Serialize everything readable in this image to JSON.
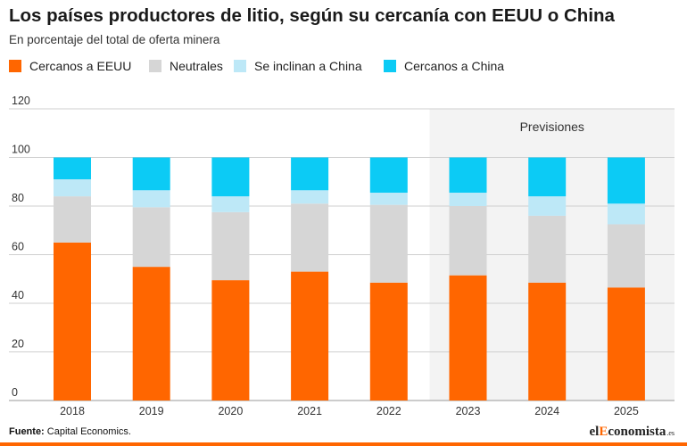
{
  "header": {
    "title": "Los países productores de litio, según su cercanía con EEUU o China",
    "subtitle": "En porcentaje del total de oferta minera"
  },
  "legend": [
    {
      "label": "Cercanos a EEUU",
      "color": "#ff6600"
    },
    {
      "label": "Neutrales",
      "color": "#d6d6d6"
    },
    {
      "label": "Se inclinan a China",
      "color": "#bde8f7"
    },
    {
      "label": "Cercanos a China",
      "color": "#0ccbf5"
    }
  ],
  "chart_data": {
    "type": "bar",
    "stacked": true,
    "categories": [
      "2018",
      "2019",
      "2020",
      "2021",
      "2022",
      "2023",
      "2024",
      "2025"
    ],
    "series": [
      {
        "name": "Cercanos a EEUU",
        "color": "#ff6600",
        "values": [
          65,
          55,
          49.5,
          53,
          48.5,
          51.5,
          48.5,
          46.5
        ]
      },
      {
        "name": "Neutrales",
        "color": "#d6d6d6",
        "values": [
          19,
          24.5,
          28,
          28,
          32,
          28.5,
          27.5,
          26
        ]
      },
      {
        "name": "Se inclinan a China",
        "color": "#bde8f7",
        "values": [
          7,
          7,
          6.5,
          5.5,
          5,
          5.5,
          8,
          8.5
        ]
      },
      {
        "name": "Cercanos a China",
        "color": "#0ccbf5",
        "values": [
          9,
          13.5,
          16,
          13.5,
          14.5,
          14.5,
          16,
          19
        ]
      }
    ],
    "ylim": [
      0,
      120
    ],
    "yticks": [
      0,
      20,
      40,
      60,
      80,
      100,
      120
    ],
    "grid": true,
    "legend_position": "top-left",
    "forecast": {
      "label": "Previsiones",
      "from": "2023",
      "to": "2025"
    }
  },
  "footer": {
    "source_label": "Fuente:",
    "source_text": "Capital Economics.",
    "brand_prefix": "el",
    "brand_highlight": "E",
    "brand_suffix": "conomista",
    "brand_tld": ".es"
  }
}
